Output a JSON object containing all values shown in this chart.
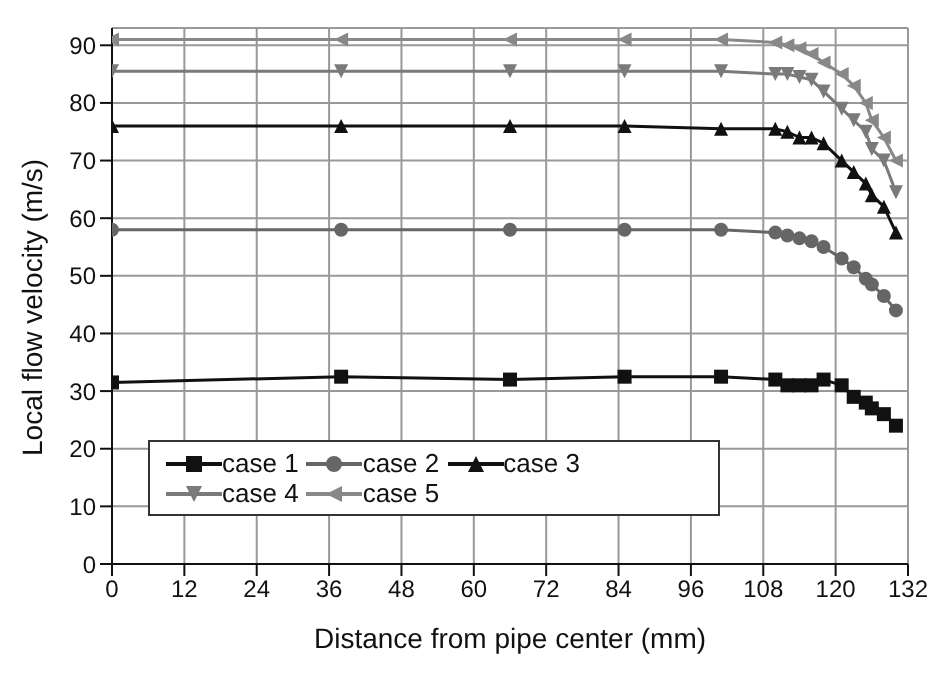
{
  "chart_data": {
    "type": "line",
    "xlabel": "Distance from pipe center (mm)",
    "ylabel": "Local flow velocity (m/s)",
    "x": [
      0,
      38,
      66,
      85,
      101,
      110,
      112,
      114,
      116,
      118,
      121,
      123,
      125,
      126,
      128,
      130
    ],
    "xlim": [
      0,
      132
    ],
    "xticks": [
      0,
      12,
      24,
      36,
      48,
      60,
      72,
      84,
      96,
      108,
      120,
      132
    ],
    "ylim": [
      0,
      93
    ],
    "yticks": [
      0,
      10,
      20,
      30,
      40,
      50,
      60,
      70,
      80,
      90
    ],
    "grid": true,
    "legend": "bottom left",
    "series": [
      {
        "name": "case 1",
        "color": "#111111",
        "marker": "square",
        "values": [
          31.5,
          32.5,
          32,
          32.5,
          32.5,
          32,
          31,
          31,
          31,
          32,
          31,
          29,
          28,
          27,
          26,
          24
        ]
      },
      {
        "name": "case 2",
        "color": "#666666",
        "marker": "circle",
        "values": [
          58,
          58,
          58,
          58,
          58,
          57.5,
          57,
          56.5,
          56,
          55,
          53,
          51.5,
          49.5,
          48.5,
          46.5,
          44
        ]
      },
      {
        "name": "case 3",
        "color": "#111111",
        "marker": "triangle",
        "values": [
          76,
          76,
          76,
          76,
          75.5,
          75.5,
          75,
          74,
          74,
          73,
          70,
          68,
          66,
          64,
          62,
          57.5
        ]
      },
      {
        "name": "case 4",
        "color": "#7a7a7a",
        "marker": "triangle-down",
        "values": [
          85.5,
          85.5,
          85.5,
          85.5,
          85.5,
          85,
          85,
          84.5,
          84,
          82,
          79,
          77,
          75,
          72,
          70,
          64.5
        ]
      },
      {
        "name": "case 5",
        "color": "#888888",
        "marker": "triangle-left",
        "values": [
          91,
          91,
          91,
          91,
          91,
          90.5,
          90,
          89.5,
          88.5,
          87,
          85,
          83,
          80,
          77,
          74,
          70
        ]
      }
    ]
  }
}
